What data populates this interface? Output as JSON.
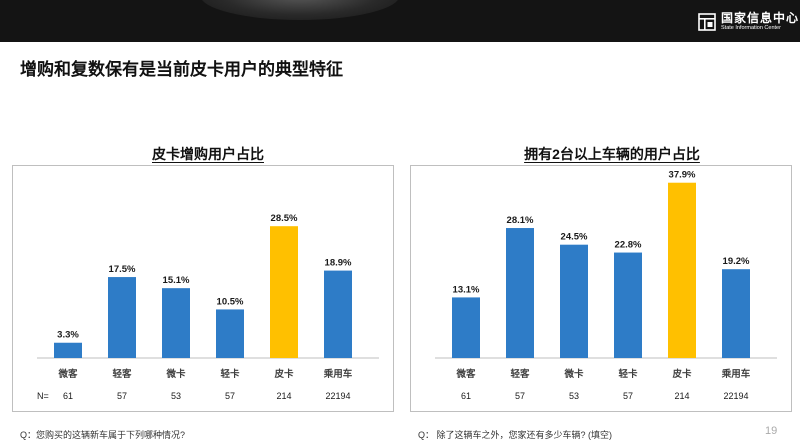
{
  "header": {
    "logo_cn": "国家信息中心",
    "logo_en": "State Information Center"
  },
  "page_title": "增购和复数保有是当前皮卡用户的典型特征",
  "colors": {
    "bar": "#2E7CC7",
    "highlight": "#FFC000",
    "axis": "#bfbfbf"
  },
  "chart_data": [
    {
      "type": "bar",
      "title": "皮卡增购用户占比",
      "categories": [
        "微客",
        "轻客",
        "微卡",
        "轻卡",
        "皮卡",
        "乘用车"
      ],
      "values": [
        3.3,
        17.5,
        15.1,
        10.5,
        28.5,
        18.9
      ],
      "value_labels": [
        "3.3%",
        "17.5%",
        "15.1%",
        "10.5%",
        "28.5%",
        "18.9%"
      ],
      "highlight_index": 4,
      "n_prefix": "N=",
      "n_values": [
        "61",
        "57",
        "53",
        "57",
        "214",
        "22194"
      ],
      "ylim": [
        0,
        40
      ],
      "grid": false
    },
    {
      "type": "bar",
      "title": "拥有2台以上车辆的用户占比",
      "categories": [
        "微客",
        "轻客",
        "微卡",
        "轻卡",
        "皮卡",
        "乘用车"
      ],
      "values": [
        13.1,
        28.1,
        24.5,
        22.8,
        37.9,
        19.2
      ],
      "value_labels": [
        "13.1%",
        "28.1%",
        "24.5%",
        "22.8%",
        "37.9%",
        "19.2%"
      ],
      "highlight_index": 4,
      "n_prefix": "",
      "n_values": [
        "61",
        "57",
        "53",
        "57",
        "214",
        "22194"
      ],
      "ylim": [
        0,
        40
      ],
      "grid": false
    }
  ],
  "footnotes": {
    "left": "Q：您购买的这辆新车属于下列哪种情况?",
    "right": "Q：  除了这辆车之外，您家还有多少车辆?   (填空)"
  },
  "page_number": "19"
}
